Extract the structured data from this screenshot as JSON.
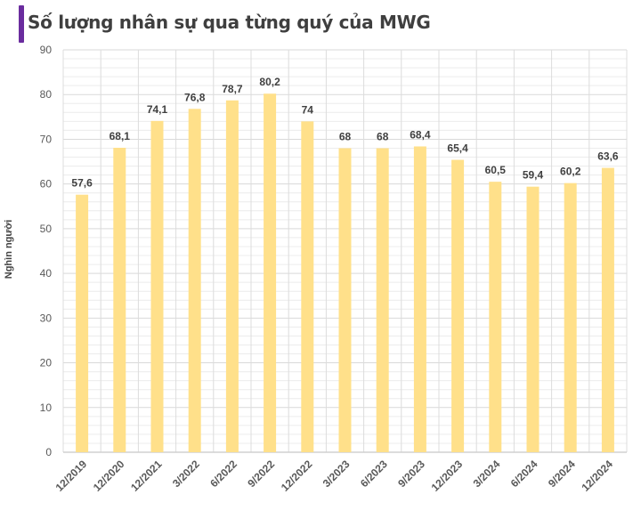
{
  "header": {
    "title": "Số lượng nhân sự qua từng quý của MWG",
    "accent_color": "#6a2c9e"
  },
  "chart_data": {
    "type": "bar",
    "title": "Số lượng nhân sự qua từng quý của MWG",
    "xlabel": "",
    "ylabel": "Nghìn người",
    "ylim": [
      0,
      90
    ],
    "yticks": [
      0,
      10,
      20,
      30,
      40,
      50,
      60,
      70,
      80,
      90
    ],
    "grid": true,
    "legend": null,
    "bar_color": "#ffe08a",
    "categories": [
      "12/2019",
      "12/2020",
      "12/2021",
      "3/2022",
      "6/2022",
      "9/2022",
      "12/2022",
      "3/2023",
      "6/2023",
      "9/2023",
      "12/2023",
      "3/2024",
      "6/2024",
      "9/2024",
      "12/2024"
    ],
    "values": [
      57.6,
      68.1,
      74.1,
      76.8,
      78.7,
      80.2,
      74,
      68,
      68,
      68.4,
      65.4,
      60.5,
      59.4,
      60.2,
      63.6
    ],
    "value_labels": [
      "57,6",
      "68,1",
      "74,1",
      "76,8",
      "78,7",
      "80,2",
      "74",
      "68",
      "68",
      "68,4",
      "65,4",
      "60,5",
      "59,4",
      "60,2",
      "63,6"
    ]
  }
}
